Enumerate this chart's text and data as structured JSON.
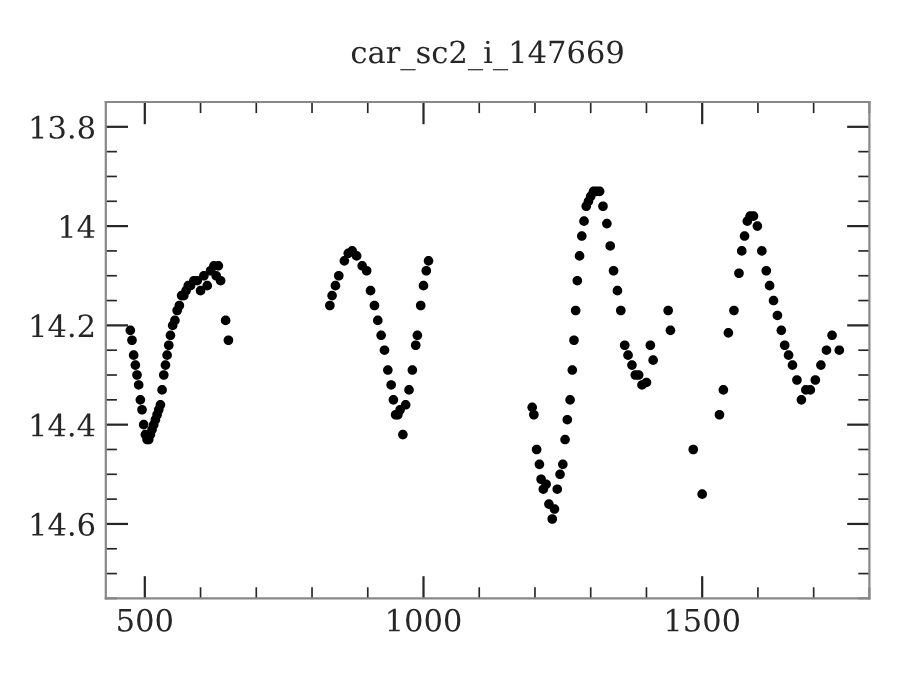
{
  "chart_data": {
    "type": "scatter",
    "title": "car_sc2_i_147669",
    "xlim": [
      430,
      1800
    ],
    "xticks": [
      500,
      1000,
      1500
    ],
    "ylim": [
      14.75,
      13.75
    ],
    "yticks": [
      13.8,
      14,
      14.2,
      14.4,
      14.6
    ],
    "marker": "circle",
    "grid": false,
    "series": [
      {
        "color": "#000000",
        "x": [
          474,
          477,
          480,
          483,
          486,
          489,
          492,
          495,
          498,
          501,
          504,
          507,
          510,
          513,
          516,
          519,
          522,
          525,
          528,
          531,
          534,
          537,
          540,
          543,
          546,
          550,
          554,
          558,
          562,
          566,
          570,
          574,
          578,
          582,
          588,
          594,
          600,
          606,
          612,
          618,
          624,
          628,
          632,
          636,
          645,
          650,
          832,
          836,
          842,
          848,
          858,
          865,
          872,
          880,
          890,
          898,
          905,
          912,
          918,
          924,
          930,
          936,
          942,
          946,
          950,
          954,
          958,
          963,
          968,
          974,
          980,
          986,
          989,
          995,
          1000,
          1005,
          1009,
          1195,
          1198,
          1203,
          1208,
          1211,
          1215,
          1220,
          1225,
          1231,
          1235,
          1240,
          1245,
          1250,
          1254,
          1258,
          1263,
          1267,
          1270,
          1273,
          1276,
          1280,
          1284,
          1288,
          1292,
          1296,
          1300,
          1305,
          1310,
          1316,
          1322,
          1329,
          1335,
          1341,
          1348,
          1354,
          1361,
          1367,
          1374,
          1380,
          1386,
          1392,
          1400,
          1407,
          1412,
          1439,
          1443,
          1484,
          1500,
          1531,
          1538,
          1547,
          1557,
          1566,
          1571,
          1576,
          1581,
          1586,
          1592,
          1599,
          1607,
          1615,
          1621,
          1628,
          1635,
          1642,
          1648,
          1655,
          1662,
          1670,
          1678,
          1686,
          1694,
          1703,
          1713,
          1723,
          1733,
          1746
        ],
        "values": [
          14.21,
          14.23,
          14.26,
          14.28,
          14.3,
          14.32,
          14.35,
          14.37,
          14.4,
          14.42,
          14.43,
          14.43,
          14.42,
          14.41,
          14.4,
          14.39,
          14.38,
          14.37,
          14.36,
          14.33,
          14.3,
          14.28,
          14.26,
          14.24,
          14.22,
          14.2,
          14.19,
          14.17,
          14.16,
          14.14,
          14.14,
          14.13,
          14.12,
          14.12,
          14.11,
          14.11,
          14.13,
          14.1,
          14.12,
          14.09,
          14.08,
          14.1,
          14.08,
          14.11,
          14.19,
          14.23,
          14.16,
          14.14,
          14.12,
          14.1,
          14.07,
          14.055,
          14.05,
          14.06,
          14.08,
          14.09,
          14.13,
          14.16,
          14.19,
          14.22,
          14.25,
          14.29,
          14.32,
          14.35,
          14.38,
          14.38,
          14.37,
          14.42,
          14.36,
          14.33,
          14.29,
          14.24,
          14.22,
          14.16,
          14.12,
          14.09,
          14.07,
          14.365,
          14.38,
          14.45,
          14.48,
          14.51,
          14.53,
          14.52,
          14.56,
          14.59,
          14.57,
          14.53,
          14.5,
          14.48,
          14.43,
          14.39,
          14.35,
          14.29,
          14.23,
          14.17,
          14.11,
          14.06,
          14.02,
          13.99,
          13.96,
          13.95,
          13.94,
          13.93,
          13.93,
          13.93,
          13.96,
          13.995,
          14.04,
          14.09,
          14.13,
          14.17,
          14.24,
          14.26,
          14.28,
          14.3,
          14.3,
          14.32,
          14.315,
          14.24,
          14.27,
          14.17,
          14.21,
          14.45,
          14.54,
          14.38,
          14.33,
          14.215,
          14.17,
          14.095,
          14.05,
          14.02,
          13.99,
          13.98,
          13.98,
          14.0,
          14.05,
          14.09,
          14.12,
          14.15,
          14.18,
          14.21,
          14.24,
          14.26,
          14.28,
          14.31,
          14.35,
          14.33,
          14.33,
          14.31,
          14.28,
          14.25,
          14.22,
          14.25
        ]
      }
    ]
  }
}
